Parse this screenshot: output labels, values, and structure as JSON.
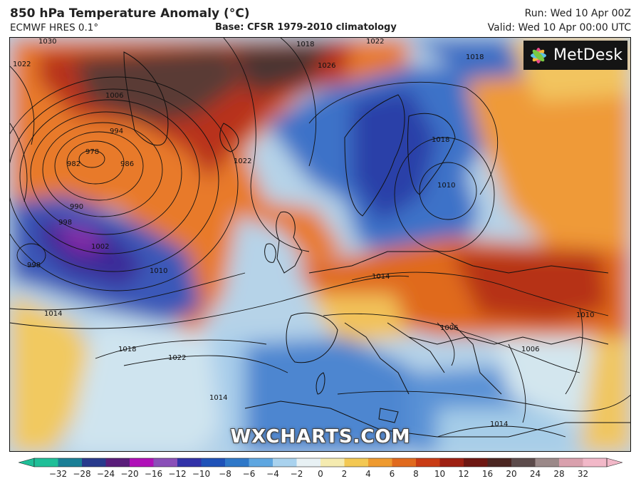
{
  "header": {
    "title": "850 hPa Temperature Anomaly (°C)",
    "model": "ECMWF HRES 0.1°",
    "base": "Base: CFSR 1979-2010 climatology",
    "run": "Run: Wed 10 Apr 00Z",
    "valid": "Valid: Wed 10 Apr 00:00 UTC"
  },
  "logo": {
    "text": "MetDesk"
  },
  "watermark": "WXCHARTS.COM",
  "isobar_labels": [
    "1030",
    "1022",
    "1006",
    "994",
    "978",
    "982",
    "986",
    "990",
    "998",
    "1002",
    "998",
    "1010",
    "1014",
    "1018",
    "1022",
    "1018",
    "1026",
    "1018",
    "1022",
    "1018",
    "1014",
    "1010",
    "1006",
    "1006",
    "1014",
    "1014",
    "1010",
    "1022"
  ],
  "colorbar": {
    "ticks": [
      "−32",
      "−28",
      "−24",
      "−20",
      "−16",
      "−12",
      "−10",
      "−8",
      "−6",
      "−4",
      "−2",
      "0",
      "2",
      "4",
      "6",
      "8",
      "10",
      "12",
      "16",
      "20",
      "24",
      "28",
      "32"
    ],
    "colors": [
      "#1fbf98",
      "#1a7f96",
      "#283a8c",
      "#5a1d7a",
      "#b010b8",
      "#8a4fb8",
      "#3232a8",
      "#1f52b8",
      "#2f78c8",
      "#5ea6e0",
      "#a9d2ee",
      "#e8f1f4",
      "#f5ebb0",
      "#f3c853",
      "#ee9a30",
      "#e06a1e",
      "#c93c15",
      "#9e2012",
      "#6e1712",
      "#4b2622",
      "#5c4b4b",
      "#9b8989",
      "#d9a0ad",
      "#f2b8c8"
    ]
  }
}
